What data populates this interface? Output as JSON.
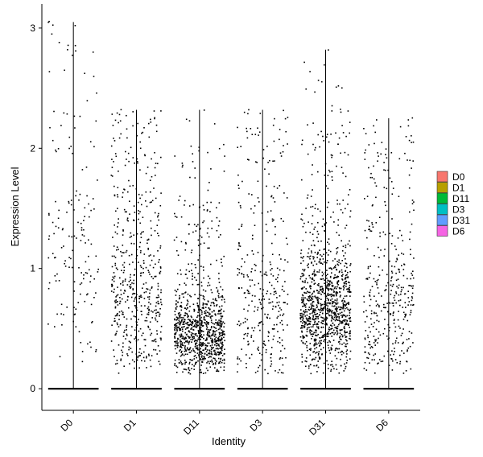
{
  "chart_data": {
    "type": "scatter",
    "subtype": "violin-jitter",
    "title": "",
    "xlabel": "Identity",
    "ylabel": "Expression Level",
    "ylim": [
      -0.18,
      3.2
    ],
    "yticks": [
      0,
      1,
      2,
      3
    ],
    "grid": false,
    "legend_position": "right",
    "categories": [
      "D0",
      "D1",
      "D11",
      "D3",
      "D31",
      "D6"
    ],
    "series": [
      {
        "name": "D0",
        "color": "#F8766D",
        "max": 3.05,
        "cells": 760,
        "nonzero": 160,
        "spread": "wide",
        "center": 1.1
      },
      {
        "name": "D1",
        "color": "#B79F00",
        "max": 2.32,
        "cells": 920,
        "nonzero": 520,
        "spread": "wide",
        "center": 0.75
      },
      {
        "name": "D11",
        "color": "#00BA38",
        "max": 2.32,
        "cells": 1300,
        "nonzero": 980,
        "spread": "low",
        "center": 0.45
      },
      {
        "name": "D3",
        "color": "#00BFC4",
        "max": 2.32,
        "cells": 780,
        "nonzero": 330,
        "spread": "wide",
        "center": 0.65
      },
      {
        "name": "D31",
        "color": "#619CFF",
        "max": 2.82,
        "cells": 1350,
        "nonzero": 1100,
        "spread": "mid",
        "center": 0.65
      },
      {
        "name": "D6",
        "color": "#F564E3",
        "max": 2.25,
        "cells": 720,
        "nonzero": 380,
        "spread": "wide",
        "center": 0.65
      }
    ]
  }
}
